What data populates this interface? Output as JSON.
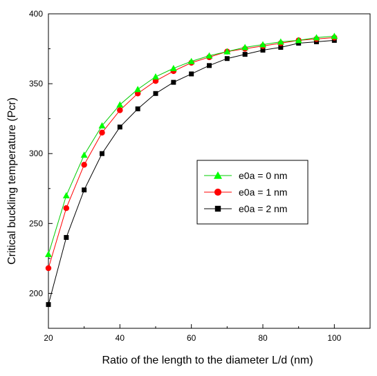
{
  "chart_data": {
    "type": "line",
    "xlabel": "Ratio of the length to the diameter L/d (nm)",
    "ylabel": "Critical buckling temperature (Pcr)",
    "xlim": [
      20,
      110
    ],
    "ylim": [
      175,
      400
    ],
    "xticks": [
      20,
      40,
      60,
      80,
      100
    ],
    "yticks": [
      200,
      250,
      300,
      350,
      400
    ],
    "grid": false,
    "legend_position": "center-right",
    "x": [
      20,
      25,
      30,
      35,
      40,
      45,
      50,
      55,
      60,
      65,
      70,
      75,
      80,
      85,
      90,
      95,
      100
    ],
    "series": [
      {
        "name": "e0a = 0 nm",
        "marker": "triangle",
        "color": "#00ff00",
        "line_color": "#00cc00",
        "values": [
          228,
          270,
          299,
          320,
          335,
          346,
          355,
          361,
          366,
          370,
          373,
          376,
          378,
          380,
          381,
          383,
          384
        ]
      },
      {
        "name": "e0a = 1 nm",
        "marker": "circle",
        "color": "#ff0000",
        "line_color": "#ff0000",
        "values": [
          218,
          261,
          292,
          315,
          331,
          343,
          352,
          359,
          365,
          369,
          373,
          375,
          377,
          379,
          381,
          382,
          383
        ]
      },
      {
        "name": "e0a = 2 nm",
        "marker": "square",
        "color": "#000000",
        "line_color": "#000000",
        "values": [
          192,
          240,
          274,
          300,
          319,
          332,
          343,
          351,
          357,
          363,
          368,
          371,
          374,
          376,
          379,
          380,
          381
        ]
      }
    ]
  }
}
